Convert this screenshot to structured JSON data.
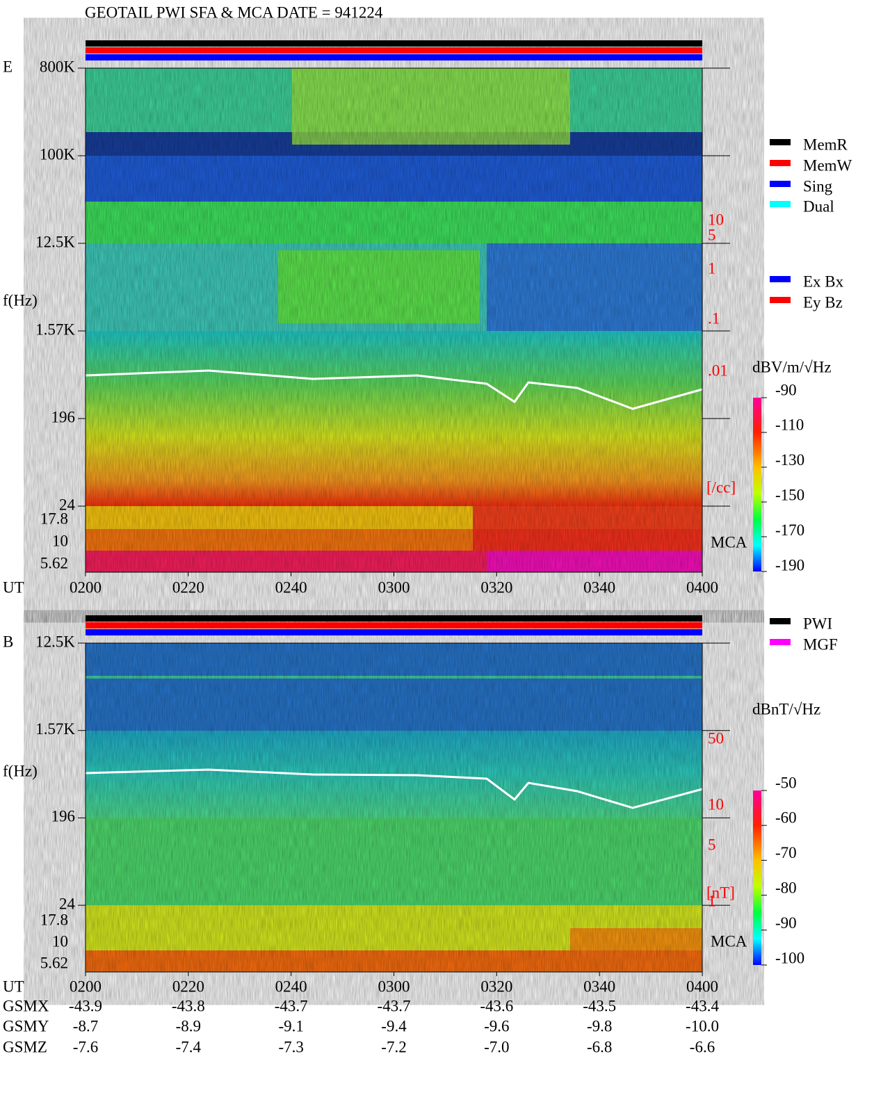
{
  "title": "GEOTAIL  PWI SFA & MCA   DATE = 941224",
  "panels": [
    {
      "label": "E",
      "ylabel": "f(Hz)",
      "freq_ticks": [
        "800K",
        "100K",
        "12.5K",
        "1.57K",
        "196",
        "24"
      ],
      "mca_ticks": [
        "17.8",
        "10",
        "5.62"
      ],
      "mca_label": "MCA",
      "right_ticks": [
        "10",
        "5",
        "1",
        ".1",
        ".01"
      ],
      "right_unit": "[/cc]",
      "time_label": "UT",
      "time_ticks": [
        "0200",
        "0220",
        "0240",
        "0300",
        "0320",
        "0340",
        "0400"
      ],
      "colorbar_unit": "dBV/m/√Hz",
      "colorbar_ticks": [
        -90,
        -110,
        -130,
        -150,
        -170,
        -190
      ],
      "legend": [
        {
          "name": "MemR",
          "color": "#000000"
        },
        {
          "name": "MemW",
          "color": "#ff0000"
        },
        {
          "name": "Sing",
          "color": "#0000ff"
        },
        {
          "name": "Dual",
          "color": "#00ffff"
        }
      ],
      "legend2": [
        {
          "name": "Ex Bx",
          "color": "#0000ff"
        },
        {
          "name": "Ey Bz",
          "color": "#ff0000"
        }
      ]
    },
    {
      "label": "B",
      "ylabel": "f(Hz)",
      "freq_ticks": [
        "12.5K",
        "1.57K",
        "196",
        "24"
      ],
      "mca_ticks": [
        "17.8",
        "10",
        "5.62"
      ],
      "mca_label": "MCA",
      "right_ticks": [
        "50",
        "10",
        "5",
        "1"
      ],
      "right_unit": "[nT]",
      "time_label": "UT",
      "time_ticks": [
        "0200",
        "0220",
        "0240",
        "0300",
        "0320",
        "0340",
        "0400"
      ],
      "colorbar_unit": "dBnT/√Hz",
      "colorbar_ticks": [
        -50,
        -60,
        -70,
        -80,
        -90,
        -100
      ],
      "legend": [
        {
          "name": "PWI",
          "color": "#000000"
        },
        {
          "name": "MGF",
          "color": "#ff00ff"
        }
      ]
    }
  ],
  "orbit": {
    "rows": [
      {
        "name": "GSMX",
        "values": [
          "-43.9",
          "-43.8",
          "-43.7",
          "-43.7",
          "-43.6",
          "-43.5",
          "-43.4"
        ]
      },
      {
        "name": "GSMY",
        "values": [
          "-8.7",
          "-8.9",
          "-9.1",
          "-9.4",
          "-9.6",
          "-9.8",
          "-10.0"
        ]
      },
      {
        "name": "GSMZ",
        "values": [
          "-7.6",
          "-7.4",
          "-7.3",
          "-7.2",
          "-7.0",
          "-6.8",
          "-6.6"
        ]
      }
    ]
  }
}
